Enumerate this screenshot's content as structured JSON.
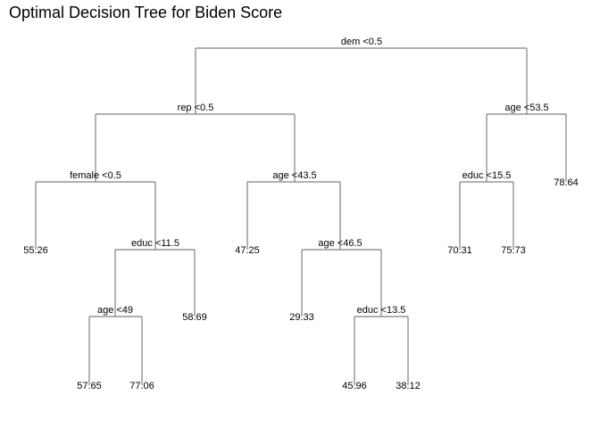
{
  "title": "Optimal Decision Tree for Biden Score",
  "tree": {
    "split": "dem <0.5",
    "left": {
      "split": "rep <0.5",
      "left": {
        "split": "female <0.5",
        "left": {
          "leaf": "55.26"
        },
        "right": {
          "split": "educ <11.5",
          "left": {
            "split": "age <49",
            "left": {
              "leaf": "57.65"
            },
            "right": {
              "leaf": "77.06"
            }
          },
          "right": {
            "leaf": "58.69"
          }
        }
      },
      "right": {
        "split": "age <43.5",
        "left": {
          "leaf": "47.25"
        },
        "right": {
          "split": "age <46.5",
          "left": {
            "leaf": "29.33"
          },
          "right": {
            "split": "educ <13.5",
            "left": {
              "leaf": "45.96"
            },
            "right": {
              "leaf": "38.12"
            }
          }
        }
      }
    },
    "right": {
      "split": "age <53.5",
      "left": {
        "split": "educ <15.5",
        "left": {
          "leaf": "70.31"
        },
        "right": {
          "leaf": "75.73"
        }
      },
      "right": {
        "leaf": "78.64"
      }
    }
  }
}
